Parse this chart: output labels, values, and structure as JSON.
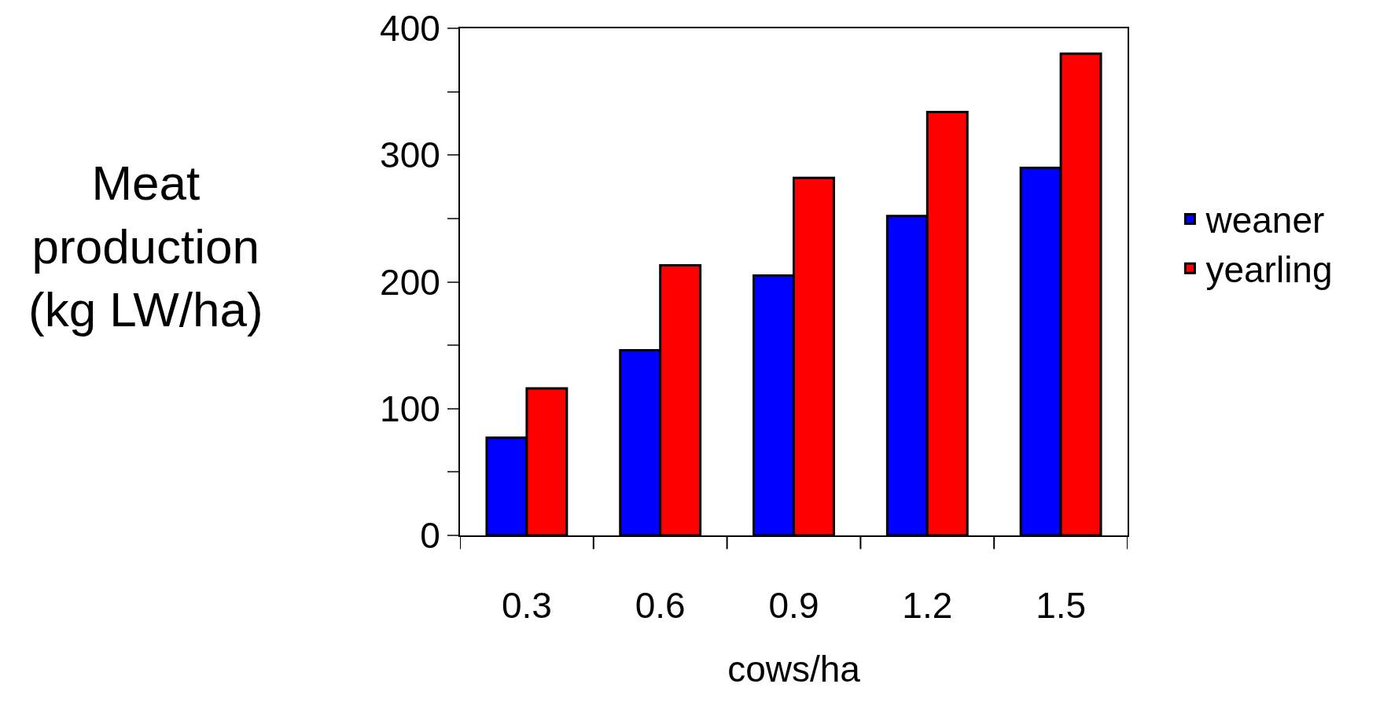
{
  "chart_data": {
    "type": "bar",
    "xlabel": "cows/ha",
    "ylabel": "Meat\nproduction\n(kg LW/ha)",
    "categories": [
      "0.3",
      "0.6",
      "0.9",
      "1.2",
      "1.5"
    ],
    "series": [
      {
        "name": "weaner",
        "color": "#0000ff",
        "values": [
          77,
          146,
          205,
          252,
          290
        ]
      },
      {
        "name": "yearling",
        "color": "#ff0000",
        "values": [
          116,
          213,
          282,
          334,
          380
        ]
      }
    ],
    "ylim": [
      0,
      400
    ],
    "yticks": [
      0,
      {
        "value": 50,
        "label": null
      },
      100,
      {
        "value": 150,
        "label": null
      },
      200,
      {
        "value": 250,
        "label": null
      },
      300,
      {
        "value": 350,
        "label": null
      },
      400
    ],
    "grid": false,
    "legend": "right"
  }
}
